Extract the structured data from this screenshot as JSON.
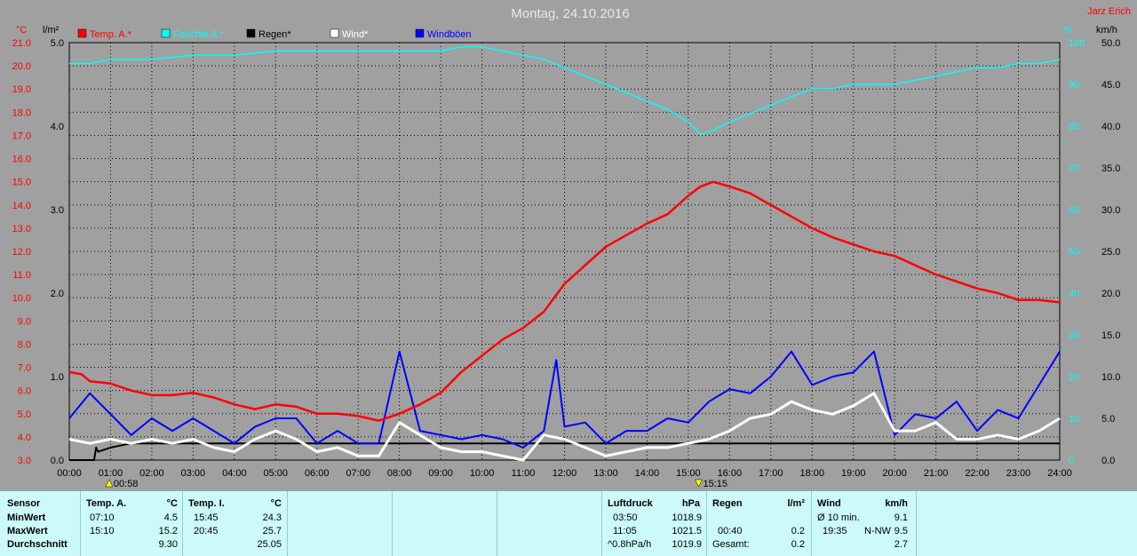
{
  "header": {
    "title": "Montag, 24.10.2016",
    "credit": "Jarz Erich"
  },
  "axes": {
    "temp_unit": "°C",
    "rain_unit": "l/m²",
    "humidity_unit": "%",
    "wind_unit": "km/h",
    "temp_ticks": [
      "3.0",
      "4.0",
      "5.0",
      "6.0",
      "7.0",
      "8.0",
      "9.0",
      "10.0",
      "11.0",
      "12.0",
      "13.0",
      "14.0",
      "15.0",
      "16.0",
      "17.0",
      "18.0",
      "19.0",
      "20.0",
      "21.0"
    ],
    "rain_ticks": [
      "0.0",
      "1.0",
      "2.0",
      "3.0",
      "4.0",
      "5.0"
    ],
    "humidity_ticks": [
      "0",
      "10",
      "20",
      "30",
      "40",
      "50",
      "60",
      "70",
      "80",
      "90",
      "100"
    ],
    "wind_ticks": [
      "0.0",
      "5.0",
      "10.0",
      "15.0",
      "20.0",
      "25.0",
      "30.0",
      "35.0",
      "40.0",
      "45.0",
      "50.0"
    ],
    "time_ticks": [
      "00:00",
      "01:00",
      "02:00",
      "03:00",
      "04:00",
      "05:00",
      "06:00",
      "07:00",
      "08:00",
      "09:00",
      "10:00",
      "11:00",
      "12:00",
      "13:00",
      "14:00",
      "15:00",
      "16:00",
      "17:00",
      "18:00",
      "19:00",
      "20:00",
      "21:00",
      "22:00",
      "23:00",
      "24:00"
    ],
    "sunrise": "00:58",
    "sunset": "15:15"
  },
  "legend": [
    {
      "label": "Temp. A.*",
      "color": "#ff0000"
    },
    {
      "label": "Feuchte A.*",
      "color": "#00ffff"
    },
    {
      "label": "Regen*",
      "color": "#000000"
    },
    {
      "label": "Wind*",
      "color": "#ffffff"
    },
    {
      "label": "Windböen",
      "color": "#0000ff"
    }
  ],
  "chart_data": {
    "type": "line",
    "x_unit": "hour",
    "xlim": [
      0,
      24
    ],
    "series": [
      {
        "name": "Temp. A.*",
        "axis": "temp °C",
        "ylim": [
          3,
          21
        ],
        "x": [
          0,
          0.3,
          0.5,
          1,
          1.5,
          2,
          2.5,
          3,
          3.5,
          4,
          4.5,
          5,
          5.5,
          6,
          6.5,
          7,
          7.5,
          8,
          8.5,
          9,
          9.5,
          10,
          10.5,
          11,
          11.5,
          12,
          12.5,
          13,
          13.5,
          14,
          14.5,
          15,
          15.3,
          15.6,
          16,
          16.5,
          17,
          17.5,
          18,
          18.5,
          19,
          19.5,
          20,
          20.5,
          21,
          21.5,
          22,
          22.5,
          23,
          23.5,
          24
        ],
        "y": [
          6.8,
          6.7,
          6.4,
          6.3,
          6.0,
          5.8,
          5.8,
          5.9,
          5.7,
          5.4,
          5.2,
          5.4,
          5.3,
          5.0,
          5.0,
          4.9,
          4.7,
          5.0,
          5.4,
          5.9,
          6.8,
          7.5,
          8.2,
          8.7,
          9.4,
          10.6,
          11.4,
          12.2,
          12.7,
          13.2,
          13.6,
          14.4,
          14.8,
          15.0,
          14.8,
          14.5,
          14.0,
          13.5,
          13.0,
          12.6,
          12.3,
          12.0,
          11.8,
          11.4,
          11.0,
          10.7,
          10.4,
          10.2,
          9.9,
          9.9,
          9.8
        ]
      },
      {
        "name": "Feuchte A.*",
        "axis": "humidity %",
        "ylim": [
          0,
          100
        ],
        "x": [
          0,
          0.5,
          1,
          2,
          3,
          4,
          5,
          6,
          7,
          8,
          9,
          9.5,
          10,
          10.5,
          11,
          11.5,
          12,
          12.5,
          13,
          13.5,
          14,
          14.5,
          15,
          15.3,
          15.6,
          16,
          16.5,
          17,
          17.5,
          18,
          18.5,
          19,
          19.5,
          20,
          20.5,
          21,
          21.5,
          22,
          22.5,
          23,
          23.5,
          24
        ],
        "y": [
          95,
          95,
          96,
          96,
          97,
          97,
          98,
          98,
          98,
          98,
          98,
          99,
          99,
          98,
          97,
          96,
          94,
          92,
          90,
          88,
          86,
          84,
          81,
          78,
          79,
          81,
          83,
          85,
          87,
          89,
          89,
          90,
          90,
          90,
          91,
          92,
          93,
          94,
          94,
          95,
          95,
          96
        ]
      },
      {
        "name": "Regen*",
        "axis": "rain l/m²",
        "ylim": [
          0,
          5
        ],
        "x": [
          0,
          0.6,
          0.65,
          0.7,
          1,
          1.5,
          2,
          24
        ],
        "y": [
          0.0,
          0.0,
          0.15,
          0.1,
          0.15,
          0.2,
          0.2,
          0.2
        ]
      },
      {
        "name": "Wind*",
        "axis": "wind km/h",
        "ylim": [
          0,
          50
        ],
        "x": [
          0,
          0.5,
          1,
          1.5,
          2,
          2.5,
          3,
          3.5,
          4,
          4.5,
          5,
          5.5,
          6,
          6.5,
          7,
          7.5,
          8,
          8.5,
          9,
          9.5,
          10,
          10.5,
          11,
          11.5,
          12,
          12.5,
          13,
          13.5,
          14,
          14.5,
          15,
          15.5,
          16,
          16.5,
          17,
          17.5,
          18,
          18.5,
          19,
          19.5,
          20,
          20.5,
          21,
          21.5,
          22,
          22.5,
          23,
          23.5,
          24
        ],
        "y": [
          2.5,
          2.0,
          2.5,
          2.0,
          2.5,
          2.0,
          2.5,
          1.5,
          1.0,
          2.5,
          3.5,
          2.5,
          1.0,
          1.5,
          0.5,
          0.5,
          4.5,
          3.0,
          1.5,
          1.0,
          1.0,
          0.5,
          0,
          3.0,
          2.5,
          1.5,
          0.5,
          1.0,
          1.5,
          1.5,
          2.0,
          2.5,
          3.5,
          5.0,
          5.5,
          7.0,
          6.0,
          5.5,
          6.5,
          8.0,
          3.5,
          3.5,
          4.5,
          2.5,
          2.5,
          3.0,
          2.5,
          3.5,
          5.0
        ]
      },
      {
        "name": "Windböen",
        "axis": "wind km/h",
        "ylim": [
          0,
          50
        ],
        "x": [
          0,
          0.5,
          1,
          1.5,
          2,
          2.5,
          3,
          3.5,
          4,
          4.5,
          5,
          5.5,
          6,
          6.5,
          7,
          7.5,
          8,
          8.5,
          9,
          9.5,
          10,
          10.5,
          11,
          11.5,
          11.8,
          12,
          12.5,
          13,
          13.5,
          14,
          14.5,
          15,
          15.5,
          16,
          16.5,
          17,
          17.5,
          18,
          18.5,
          19,
          19.5,
          20,
          20.5,
          21,
          21.5,
          22,
          22.5,
          23,
          23.5,
          24
        ],
        "y": [
          5.0,
          8.0,
          5.5,
          3.0,
          5.0,
          3.5,
          5.0,
          3.5,
          2.0,
          4.0,
          5.0,
          5.0,
          2.0,
          3.5,
          2.0,
          2.0,
          13.0,
          3.5,
          3.0,
          2.5,
          3.0,
          2.5,
          1.5,
          3.5,
          12.0,
          4.0,
          4.5,
          2.0,
          3.5,
          3.5,
          5.0,
          4.5,
          7.0,
          8.5,
          8.0,
          10.0,
          13.0,
          9.0,
          10.0,
          10.5,
          13.0,
          3.0,
          5.5,
          5.0,
          7.0,
          3.5,
          6.0,
          5.0,
          9.0,
          13.0
        ]
      }
    ]
  },
  "table": {
    "sensor": {
      "header": "Sensor",
      "rows": [
        "MinWert",
        "MaxWert",
        "Durchschnitt"
      ]
    },
    "temp_a": {
      "header": "Temp. A.",
      "unit": "°C",
      "rows": [
        [
          "07:10",
          "4.5"
        ],
        [
          "15:10",
          "15.2"
        ],
        [
          "",
          "9.30"
        ]
      ]
    },
    "temp_i": {
      "header": "Temp. I.",
      "unit": "°C",
      "rows": [
        [
          "15:45",
          "24.3"
        ],
        [
          "20:45",
          "25.7"
        ],
        [
          "",
          "25.05"
        ]
      ]
    },
    "luftdruck": {
      "header": "Luftdruck",
      "unit": "hPa",
      "rows": [
        [
          "03:50",
          "1018.9"
        ],
        [
          "11:05",
          "1021.5"
        ],
        [
          "^0.8hPa/h",
          "1019.9"
        ]
      ]
    },
    "regen": {
      "header": "Regen",
      "unit": "l/m²",
      "rows": [
        [
          "",
          ""
        ],
        [
          "00:40",
          "0.2"
        ],
        [
          "Gesamt:",
          "0.2"
        ]
      ]
    },
    "wind": {
      "header": "Wind",
      "unit": "km/h",
      "rows": [
        [
          "Ø 10 min.",
          "",
          "9.1"
        ],
        [
          "19:35",
          "N-NW",
          "9.5"
        ],
        [
          "",
          "",
          "2.7"
        ]
      ]
    }
  }
}
